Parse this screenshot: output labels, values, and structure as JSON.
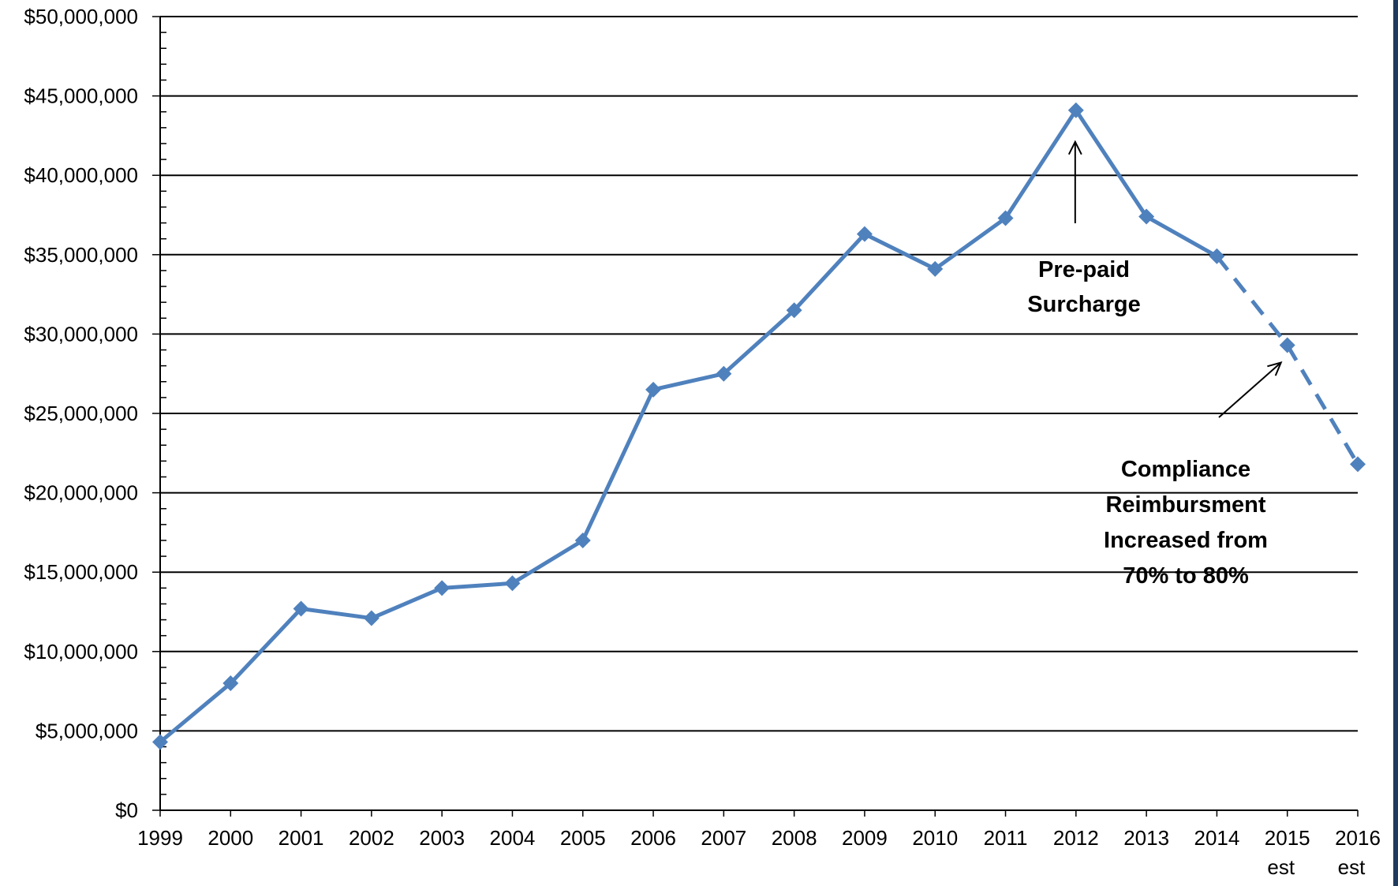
{
  "chart_data": {
    "type": "line",
    "title": "",
    "xlabel": "",
    "ylabel": "",
    "categories": [
      "1999",
      "2000",
      "2001",
      "2002",
      "2003",
      "2004",
      "2005",
      "2006",
      "2007",
      "2008",
      "2009",
      "2010",
      "2011",
      "2012",
      "2013",
      "2014",
      "2015",
      "2016"
    ],
    "category_sublabels": [
      "",
      "",
      "",
      "",
      "",
      "",
      "",
      "",
      "",
      "",
      "",
      "",
      "",
      "",
      "",
      "",
      "est",
      "est"
    ],
    "ylim": [
      0,
      50000000
    ],
    "y_ticks": [
      0,
      5000000,
      10000000,
      15000000,
      20000000,
      25000000,
      30000000,
      35000000,
      40000000,
      45000000,
      50000000
    ],
    "y_tick_labels": [
      "$0",
      "$5,000,000",
      "$10,000,000",
      "$15,000,000",
      "$20,000,000",
      "$25,000,000",
      "$30,000,000",
      "$35,000,000",
      "$40,000,000",
      "$45,000,000",
      "$50,000,000"
    ],
    "grid": true,
    "series": [
      {
        "values": [
          4300000,
          8000000,
          12700000,
          12100000,
          14000000,
          14300000,
          17000000,
          26500000,
          27500000,
          31500000,
          36300000,
          34100000,
          37300000,
          44100000,
          37400000,
          34900000,
          29300000,
          21800000
        ],
        "solid_until_index": 15,
        "dashed_from_index": 15,
        "color": "#4f81bd",
        "marker": "diamond"
      }
    ],
    "annotations": [
      {
        "lines": [
          "Pre-paid",
          "Surcharge"
        ],
        "arrow_target": "2012"
      },
      {
        "lines": [
          "Compliance",
          "Reimbursment",
          "Increased from",
          "70% to 80%"
        ],
        "arrow_target": "2015"
      }
    ]
  }
}
